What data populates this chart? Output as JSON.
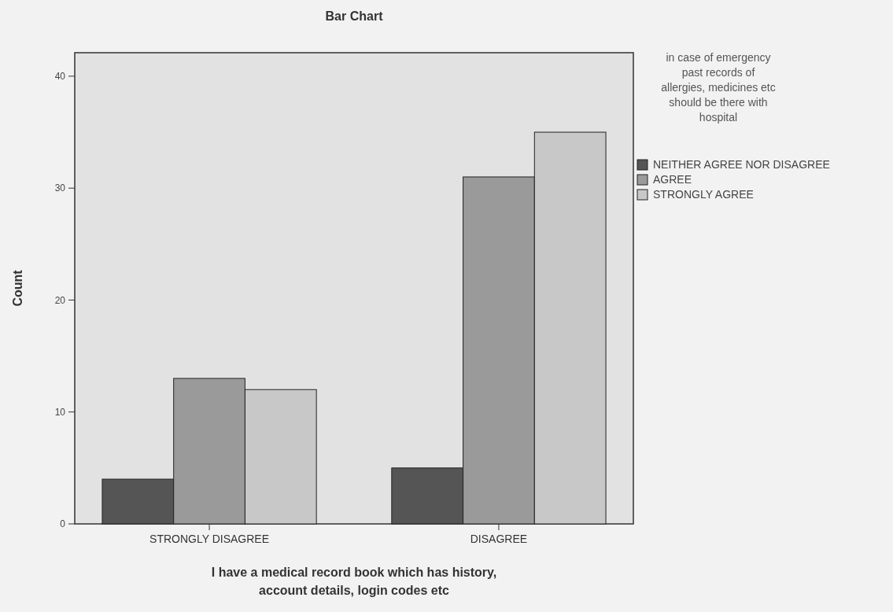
{
  "chart_data": {
    "type": "bar",
    "title": "Bar Chart",
    "xlabel": "I have a medical record book which has history, account details, login codes etc",
    "ylabel": "Count",
    "legend_title": "in case of emergency past records of allergies, medicines etc should be there with hospital",
    "categories": [
      "STRONGLY DISAGREE",
      "DISAGREE"
    ],
    "series": [
      {
        "name": "NEITHER AGREE NOR DISAGREE",
        "color": "#555555",
        "values": [
          4,
          5
        ]
      },
      {
        "name": "AGREE",
        "color": "#9a9a9a",
        "values": [
          13,
          31
        ]
      },
      {
        "name": "STRONGLY AGREE",
        "color": "#c8c8c8",
        "values": [
          12,
          35
        ]
      }
    ],
    "ylim": [
      0,
      42.1
    ],
    "yticks": [
      0,
      10,
      20,
      30,
      40
    ],
    "grid": false,
    "legend": "right"
  }
}
